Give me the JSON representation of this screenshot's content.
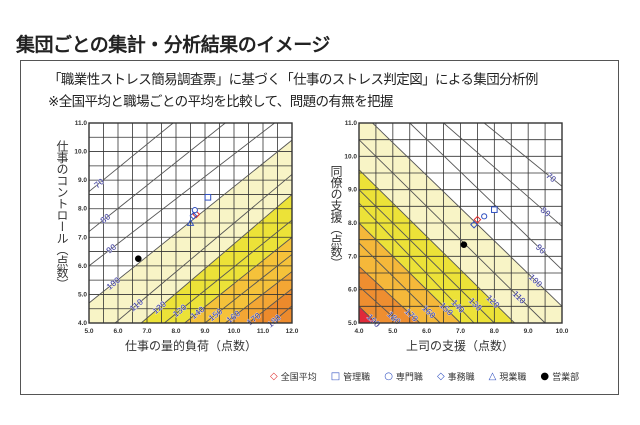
{
  "title": "集団ごとの集計・分析結果のイメージ",
  "subtitle_lines": [
    "「職業性ストレス簡易調査票」に基づく「仕事のストレス判定図」による集団分析例",
    "※全国平均と職場ごとの平均を比較して、問題の有無を把握"
  ],
  "legend": [
    {
      "label": "全国平均",
      "marker": "diamond-open",
      "color": "#e03030"
    },
    {
      "label": "管理職",
      "marker": "square-open",
      "color": "#3050c0"
    },
    {
      "label": "専門職",
      "marker": "circle-open",
      "color": "#3050c0"
    },
    {
      "label": "事務職",
      "marker": "diamond-open",
      "color": "#3050c0"
    },
    {
      "label": "現業職",
      "marker": "triangle-open",
      "color": "#3050c0"
    },
    {
      "label": "営業部",
      "marker": "circle-filled",
      "color": "#000000"
    }
  ],
  "chart_data": [
    {
      "type": "scatter",
      "xlabel": "仕事の量的負荷（点数）",
      "ylabel": "仕事のコントロール（点数）",
      "xlim": [
        5.0,
        12.0
      ],
      "ylim": [
        4.0,
        11.0
      ],
      "xticks": [
        "5.0",
        "6.0",
        "7.0",
        "8.0",
        "9.0",
        "10.0",
        "11.0",
        "12.0"
      ],
      "yticks": [
        "4.0",
        "5.0",
        "6.0",
        "7.0",
        "8.0",
        "9.0",
        "10.0",
        "11.0"
      ],
      "grid": true,
      "risk_lines": [
        {
          "label": "70",
          "from": [
            5.0,
            8.6
          ],
          "to": [
            7.9,
            11.0
          ]
        },
        {
          "label": "80",
          "from": [
            5.0,
            7.2
          ],
          "to": [
            9.7,
            11.0
          ]
        },
        {
          "label": "90",
          "from": [
            5.0,
            6.0
          ],
          "to": [
            11.4,
            11.0
          ]
        },
        {
          "label": "100",
          "from": [
            5.0,
            4.7
          ],
          "to": [
            12.0,
            10.4
          ]
        },
        {
          "label": "110",
          "from": [
            5.9,
            4.0
          ],
          "to": [
            12.0,
            9.2
          ]
        },
        {
          "label": "120",
          "from": [
            6.8,
            4.0
          ],
          "to": [
            12.0,
            8.5
          ]
        },
        {
          "label": "130",
          "from": [
            7.6,
            4.0
          ],
          "to": [
            12.0,
            7.6
          ]
        },
        {
          "label": "140",
          "from": [
            8.3,
            4.0
          ],
          "to": [
            12.0,
            7.0
          ]
        },
        {
          "label": "150",
          "from": [
            9.0,
            4.0
          ],
          "to": [
            12.0,
            6.4
          ]
        },
        {
          "label": "160",
          "from": [
            9.7,
            4.0
          ],
          "to": [
            12.0,
            5.8
          ]
        },
        {
          "label": "170",
          "from": [
            10.5,
            4.0
          ],
          "to": [
            12.0,
            5.2
          ]
        },
        {
          "label": "180",
          "from": [
            11.3,
            4.0
          ],
          "to": [
            12.0,
            4.6
          ]
        }
      ],
      "bands": [
        {
          "from_line": "100",
          "color": "#f8f4c6"
        },
        {
          "from_line": "120",
          "color": "#ece238"
        },
        {
          "from_line": "140",
          "color": "#f5c23a"
        },
        {
          "from_line": "160",
          "color": "#f3a634"
        },
        {
          "from_line": "170",
          "color": "#ec8a2c"
        }
      ],
      "points": [
        {
          "group": "全国平均",
          "x": 8.7,
          "y": 7.8
        },
        {
          "group": "管理職",
          "x": 9.1,
          "y": 8.4
        },
        {
          "group": "専門職",
          "x": 8.65,
          "y": 7.95
        },
        {
          "group": "事務職",
          "x": 8.6,
          "y": 7.75
        },
        {
          "group": "現業職",
          "x": 8.5,
          "y": 7.5
        },
        {
          "group": "営業部",
          "x": 6.7,
          "y": 6.25
        }
      ]
    },
    {
      "type": "scatter",
      "xlabel": "上司の支援（点数）",
      "ylabel": "同僚の支援（点数）",
      "xlim": [
        4.0,
        10.0
      ],
      "ylim": [
        5.0,
        11.0
      ],
      "xticks": [
        "4.0",
        "5.0",
        "6.0",
        "7.0",
        "8.0",
        "9.0",
        "10.0"
      ],
      "yticks": [
        "5.0",
        "6.0",
        "7.0",
        "8.0",
        "9.0",
        "10.0",
        "11.0"
      ],
      "grid": true,
      "risk_lines": [
        {
          "label": "70",
          "from": [
            7.7,
            11.0
          ],
          "to": [
            10.0,
            9.1
          ]
        },
        {
          "label": "80",
          "from": [
            6.5,
            11.0
          ],
          "to": [
            10.0,
            7.9
          ]
        },
        {
          "label": "90",
          "from": [
            5.5,
            11.0
          ],
          "to": [
            10.0,
            6.6
          ]
        },
        {
          "label": "100",
          "from": [
            4.4,
            11.0
          ],
          "to": [
            10.0,
            5.5
          ]
        },
        {
          "label": "110",
          "from": [
            4.0,
            10.5
          ],
          "to": [
            9.5,
            5.0
          ]
        },
        {
          "label": "120",
          "from": [
            4.0,
            9.6
          ],
          "to": [
            8.6,
            5.0
          ]
        },
        {
          "label": "130",
          "from": [
            4.0,
            9.0
          ],
          "to": [
            8.0,
            5.0
          ]
        },
        {
          "label": "140",
          "from": [
            4.0,
            8.6
          ],
          "to": [
            7.4,
            5.0
          ]
        },
        {
          "label": "150",
          "from": [
            4.0,
            8.0
          ],
          "to": [
            7.0,
            5.0
          ]
        },
        {
          "label": "160",
          "from": [
            4.0,
            7.4
          ],
          "to": [
            6.4,
            5.0
          ]
        },
        {
          "label": "170",
          "from": [
            4.0,
            6.7
          ],
          "to": [
            5.8,
            5.0
          ]
        },
        {
          "label": "180",
          "from": [
            4.0,
            6.1
          ],
          "to": [
            5.2,
            5.0
          ]
        },
        {
          "label": "190",
          "from": [
            4.0,
            5.5
          ],
          "to": [
            4.5,
            5.0
          ]
        }
      ],
      "bands": [
        {
          "from_line": "100",
          "color": "#f8f4c6"
        },
        {
          "from_line": "120",
          "color": "#ece238"
        },
        {
          "from_line": "150",
          "color": "#f5b83a"
        },
        {
          "from_line": "170",
          "color": "#ee8e30"
        },
        {
          "from_line": "190",
          "color": "#e02a3a"
        }
      ],
      "points": [
        {
          "group": "全国平均",
          "x": 7.5,
          "y": 8.1
        },
        {
          "group": "管理職",
          "x": 8.0,
          "y": 8.4
        },
        {
          "group": "専門職",
          "x": 7.7,
          "y": 8.2
        },
        {
          "group": "事務職",
          "x": 7.4,
          "y": 7.95
        },
        {
          "group": "営業部",
          "x": 7.1,
          "y": 7.35
        }
      ]
    }
  ]
}
